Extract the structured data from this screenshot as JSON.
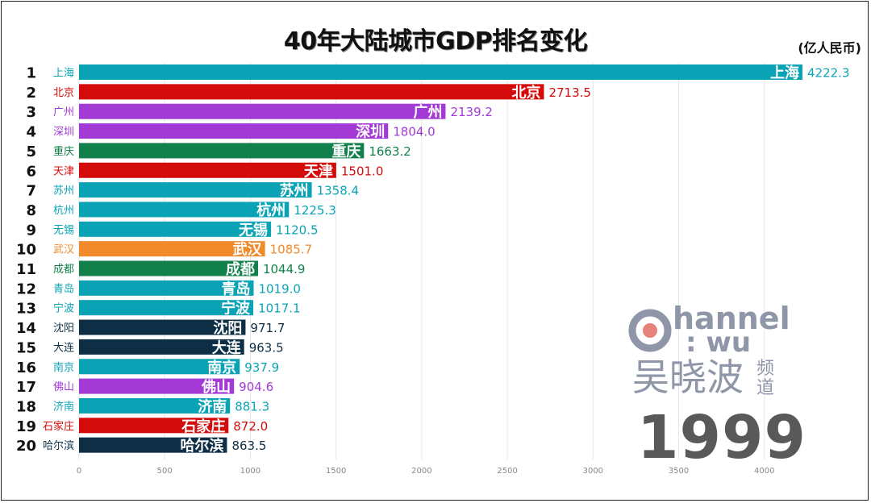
{
  "chart_data": {
    "type": "bar",
    "orientation": "horizontal",
    "title": "40年大陆城市GDP排名变化",
    "unit": "(亿人民币)",
    "year": "1999",
    "xlim": [
      0,
      4222.3
    ],
    "xticks": [
      0,
      500,
      1000,
      1500,
      2000,
      2500,
      3000,
      3500,
      4000
    ],
    "grid": true,
    "bars": [
      {
        "rank": "1",
        "city": "上海",
        "value": 4222.3,
        "label": "4222.3",
        "color": "#0aa3b5"
      },
      {
        "rank": "2",
        "city": "北京",
        "value": 2713.5,
        "label": "2713.5",
        "color": "#d40b0b"
      },
      {
        "rank": "3",
        "city": "广州",
        "value": 2139.2,
        "label": "2139.2",
        "color": "#a33ad6"
      },
      {
        "rank": "4",
        "city": "深圳",
        "value": 1804.0,
        "label": "1804.0",
        "color": "#a33ad6"
      },
      {
        "rank": "5",
        "city": "重庆",
        "value": 1663.2,
        "label": "1663.2",
        "color": "#12804a"
      },
      {
        "rank": "6",
        "city": "天津",
        "value": 1501.0,
        "label": "1501.0",
        "color": "#d40b0b"
      },
      {
        "rank": "7",
        "city": "苏州",
        "value": 1358.4,
        "label": "1358.4",
        "color": "#0aa3b5"
      },
      {
        "rank": "8",
        "city": "杭州",
        "value": 1225.3,
        "label": "1225.3",
        "color": "#0aa3b5"
      },
      {
        "rank": "9",
        "city": "无锡",
        "value": 1120.5,
        "label": "1120.5",
        "color": "#0aa3b5"
      },
      {
        "rank": "10",
        "city": "武汉",
        "value": 1085.7,
        "label": "1085.7",
        "color": "#f08a2a"
      },
      {
        "rank": "11",
        "city": "成都",
        "value": 1044.9,
        "label": "1044.9",
        "color": "#12804a"
      },
      {
        "rank": "12",
        "city": "青岛",
        "value": 1019.0,
        "label": "1019.0",
        "color": "#0aa3b5"
      },
      {
        "rank": "13",
        "city": "宁波",
        "value": 1017.1,
        "label": "1017.1",
        "color": "#0aa3b5"
      },
      {
        "rank": "14",
        "city": "沈阳",
        "value": 971.7,
        "label": "971.7",
        "color": "#0d2e44"
      },
      {
        "rank": "15",
        "city": "大连",
        "value": 963.5,
        "label": "963.5",
        "color": "#0d2e44"
      },
      {
        "rank": "16",
        "city": "南京",
        "value": 937.9,
        "label": "937.9",
        "color": "#0aa3b5"
      },
      {
        "rank": "17",
        "city": "佛山",
        "value": 904.6,
        "label": "904.6",
        "color": "#a33ad6"
      },
      {
        "rank": "18",
        "city": "济南",
        "value": 881.3,
        "label": "881.3",
        "color": "#0aa3b5"
      },
      {
        "rank": "19",
        "city": "石家庄",
        "value": 872.0,
        "label": "872.0",
        "color": "#d40b0b"
      },
      {
        "rank": "20",
        "city": "哈尔滨",
        "value": 863.5,
        "label": "863.5",
        "color": "#0d2e44"
      }
    ]
  },
  "logo": {
    "line1": "hannel",
    "line2": ": wu",
    "cn_name": "吴晓波",
    "cn_char1": "频",
    "cn_char2": "道"
  }
}
